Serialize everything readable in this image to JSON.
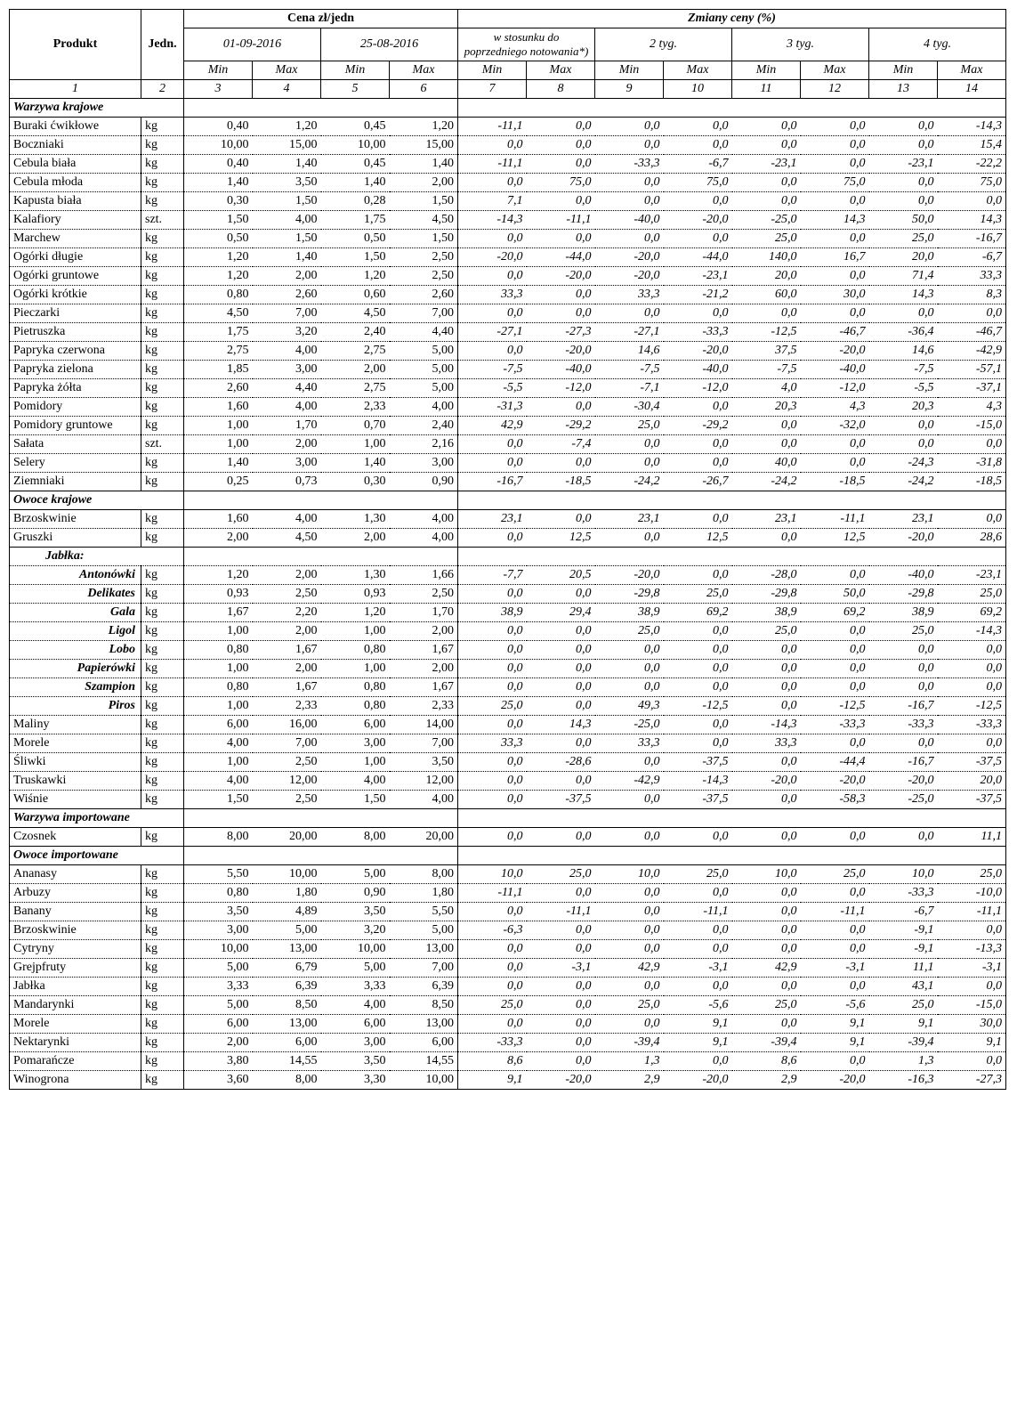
{
  "header": {
    "produkt": "Produkt",
    "jedn": "Jedn.",
    "cena": "Cena zł/jedn",
    "zmiany": "Zmiany ceny (%)",
    "date1": "01-09-2016",
    "date2": "25-08-2016",
    "wstos": "w stosunku do poprzedniego notowania*)",
    "t2": "2 tyg.",
    "t3": "3 tyg.",
    "t4": "4 tyg.",
    "min": "Min",
    "max": "Max",
    "colnums": [
      "1",
      "2",
      "3",
      "4",
      "5",
      "6",
      "7",
      "8",
      "9",
      "10",
      "11",
      "12",
      "13",
      "14"
    ]
  },
  "sections": [
    {
      "title": "Warzywa krajowe",
      "rows": [
        {
          "n": "Buraki ćwikłowe",
          "u": "kg",
          "v": [
            "0,40",
            "1,20",
            "0,45",
            "1,20",
            "-11,1",
            "0,0",
            "0,0",
            "0,0",
            "0,0",
            "0,0",
            "0,0",
            "-14,3"
          ]
        },
        {
          "n": "Boczniaki",
          "u": "kg",
          "v": [
            "10,00",
            "15,00",
            "10,00",
            "15,00",
            "0,0",
            "0,0",
            "0,0",
            "0,0",
            "0,0",
            "0,0",
            "0,0",
            "15,4"
          ]
        },
        {
          "n": "Cebula biała",
          "u": "kg",
          "v": [
            "0,40",
            "1,40",
            "0,45",
            "1,40",
            "-11,1",
            "0,0",
            "-33,3",
            "-6,7",
            "-23,1",
            "0,0",
            "-23,1",
            "-22,2"
          ]
        },
        {
          "n": "Cebula młoda",
          "u": "kg",
          "v": [
            "1,40",
            "3,50",
            "1,40",
            "2,00",
            "0,0",
            "75,0",
            "0,0",
            "75,0",
            "0,0",
            "75,0",
            "0,0",
            "75,0"
          ]
        },
        {
          "n": "Kapusta biała",
          "u": "kg",
          "v": [
            "0,30",
            "1,50",
            "0,28",
            "1,50",
            "7,1",
            "0,0",
            "0,0",
            "0,0",
            "0,0",
            "0,0",
            "0,0",
            "0,0"
          ]
        },
        {
          "n": "Kalafiory",
          "u": "szt.",
          "v": [
            "1,50",
            "4,00",
            "1,75",
            "4,50",
            "-14,3",
            "-11,1",
            "-40,0",
            "-20,0",
            "-25,0",
            "14,3",
            "50,0",
            "14,3"
          ]
        },
        {
          "n": "Marchew",
          "u": "kg",
          "v": [
            "0,50",
            "1,50",
            "0,50",
            "1,50",
            "0,0",
            "0,0",
            "0,0",
            "0,0",
            "25,0",
            "0,0",
            "25,0",
            "-16,7"
          ]
        },
        {
          "n": "Ogórki długie",
          "u": "kg",
          "v": [
            "1,20",
            "1,40",
            "1,50",
            "2,50",
            "-20,0",
            "-44,0",
            "-20,0",
            "-44,0",
            "140,0",
            "16,7",
            "20,0",
            "-6,7"
          ]
        },
        {
          "n": "Ogórki gruntowe",
          "u": "kg",
          "v": [
            "1,20",
            "2,00",
            "1,20",
            "2,50",
            "0,0",
            "-20,0",
            "-20,0",
            "-23,1",
            "20,0",
            "0,0",
            "71,4",
            "33,3"
          ]
        },
        {
          "n": "Ogórki krótkie",
          "u": "kg",
          "v": [
            "0,80",
            "2,60",
            "0,60",
            "2,60",
            "33,3",
            "0,0",
            "33,3",
            "-21,2",
            "60,0",
            "30,0",
            "14,3",
            "8,3"
          ]
        },
        {
          "n": "Pieczarki",
          "u": "kg",
          "v": [
            "4,50",
            "7,00",
            "4,50",
            "7,00",
            "0,0",
            "0,0",
            "0,0",
            "0,0",
            "0,0",
            "0,0",
            "0,0",
            "0,0"
          ]
        },
        {
          "n": "Pietruszka",
          "u": "kg",
          "v": [
            "1,75",
            "3,20",
            "2,40",
            "4,40",
            "-27,1",
            "-27,3",
            "-27,1",
            "-33,3",
            "-12,5",
            "-46,7",
            "-36,4",
            "-46,7"
          ]
        },
        {
          "n": "Papryka czerwona",
          "u": "kg",
          "v": [
            "2,75",
            "4,00",
            "2,75",
            "5,00",
            "0,0",
            "-20,0",
            "14,6",
            "-20,0",
            "37,5",
            "-20,0",
            "14,6",
            "-42,9"
          ]
        },
        {
          "n": "Papryka zielona",
          "u": "kg",
          "v": [
            "1,85",
            "3,00",
            "2,00",
            "5,00",
            "-7,5",
            "-40,0",
            "-7,5",
            "-40,0",
            "-7,5",
            "-40,0",
            "-7,5",
            "-57,1"
          ]
        },
        {
          "n": "Papryka żółta",
          "u": "kg",
          "v": [
            "2,60",
            "4,40",
            "2,75",
            "5,00",
            "-5,5",
            "-12,0",
            "-7,1",
            "-12,0",
            "4,0",
            "-12,0",
            "-5,5",
            "-37,1"
          ]
        },
        {
          "n": "Pomidory",
          "u": "kg",
          "v": [
            "1,60",
            "4,00",
            "2,33",
            "4,00",
            "-31,3",
            "0,0",
            "-30,4",
            "0,0",
            "20,3",
            "4,3",
            "20,3",
            "4,3"
          ]
        },
        {
          "n": "Pomidory gruntowe",
          "u": "kg",
          "v": [
            "1,00",
            "1,70",
            "0,70",
            "2,40",
            "42,9",
            "-29,2",
            "25,0",
            "-29,2",
            "0,0",
            "-32,0",
            "0,0",
            "-15,0"
          ]
        },
        {
          "n": "Sałata",
          "u": "szt.",
          "v": [
            "1,00",
            "2,00",
            "1,00",
            "2,16",
            "0,0",
            "-7,4",
            "0,0",
            "0,0",
            "0,0",
            "0,0",
            "0,0",
            "0,0"
          ]
        },
        {
          "n": "Selery",
          "u": "kg",
          "v": [
            "1,40",
            "3,00",
            "1,40",
            "3,00",
            "0,0",
            "0,0",
            "0,0",
            "0,0",
            "40,0",
            "0,0",
            "-24,3",
            "-31,8"
          ]
        },
        {
          "n": "Ziemniaki",
          "u": "kg",
          "v": [
            "0,25",
            "0,73",
            "0,30",
            "0,90",
            "-16,7",
            "-18,5",
            "-24,2",
            "-26,7",
            "-24,2",
            "-18,5",
            "-24,2",
            "-18,5"
          ]
        }
      ]
    },
    {
      "title": "Owoce krajowe",
      "rows": [
        {
          "n": "Brzoskwinie",
          "u": "kg",
          "v": [
            "1,60",
            "4,00",
            "1,30",
            "4,00",
            "23,1",
            "0,0",
            "23,1",
            "0,0",
            "23,1",
            "-11,1",
            "23,1",
            "0,0"
          ]
        },
        {
          "n": "Gruszki",
          "u": "kg",
          "v": [
            "2,00",
            "4,50",
            "2,00",
            "4,00",
            "0,0",
            "12,5",
            "0,0",
            "12,5",
            "0,0",
            "12,5",
            "-20,0",
            "28,6"
          ]
        },
        {
          "jablka_label": "Jabłka:"
        },
        {
          "n": "Antonówki",
          "apple": true,
          "u": "kg",
          "v": [
            "1,20",
            "2,00",
            "1,30",
            "1,66",
            "-7,7",
            "20,5",
            "-20,0",
            "0,0",
            "-28,0",
            "0,0",
            "-40,0",
            "-23,1"
          ]
        },
        {
          "n": "Delikates",
          "apple": true,
          "u": "kg",
          "v": [
            "0,93",
            "2,50",
            "0,93",
            "2,50",
            "0,0",
            "0,0",
            "-29,8",
            "25,0",
            "-29,8",
            "50,0",
            "-29,8",
            "25,0"
          ]
        },
        {
          "n": "Gala",
          "apple": true,
          "u": "kg",
          "v": [
            "1,67",
            "2,20",
            "1,20",
            "1,70",
            "38,9",
            "29,4",
            "38,9",
            "69,2",
            "38,9",
            "69,2",
            "38,9",
            "69,2"
          ]
        },
        {
          "n": "Ligol",
          "apple": true,
          "u": "kg",
          "v": [
            "1,00",
            "2,00",
            "1,00",
            "2,00",
            "0,0",
            "0,0",
            "25,0",
            "0,0",
            "25,0",
            "0,0",
            "25,0",
            "-14,3"
          ]
        },
        {
          "n": "Lobo",
          "apple": true,
          "u": "kg",
          "v": [
            "0,80",
            "1,67",
            "0,80",
            "1,67",
            "0,0",
            "0,0",
            "0,0",
            "0,0",
            "0,0",
            "0,0",
            "0,0",
            "0,0"
          ]
        },
        {
          "n": "Papierówki",
          "apple": true,
          "u": "kg",
          "v": [
            "1,00",
            "2,00",
            "1,00",
            "2,00",
            "0,0",
            "0,0",
            "0,0",
            "0,0",
            "0,0",
            "0,0",
            "0,0",
            "0,0"
          ]
        },
        {
          "n": "Szampion",
          "apple": true,
          "u": "kg",
          "v": [
            "0,80",
            "1,67",
            "0,80",
            "1,67",
            "0,0",
            "0,0",
            "0,0",
            "0,0",
            "0,0",
            "0,0",
            "0,0",
            "0,0"
          ]
        },
        {
          "n": "Piros",
          "apple": true,
          "u": "kg",
          "v": [
            "1,00",
            "2,33",
            "0,80",
            "2,33",
            "25,0",
            "0,0",
            "49,3",
            "-12,5",
            "0,0",
            "-12,5",
            "-16,7",
            "-12,5"
          ]
        },
        {
          "n": "Maliny",
          "u": "kg",
          "v": [
            "6,00",
            "16,00",
            "6,00",
            "14,00",
            "0,0",
            "14,3",
            "-25,0",
            "0,0",
            "-14,3",
            "-33,3",
            "-33,3",
            "-33,3"
          ]
        },
        {
          "n": "Morele",
          "u": "kg",
          "v": [
            "4,00",
            "7,00",
            "3,00",
            "7,00",
            "33,3",
            "0,0",
            "33,3",
            "0,0",
            "33,3",
            "0,0",
            "0,0",
            "0,0"
          ]
        },
        {
          "n": "Śliwki",
          "u": "kg",
          "v": [
            "1,00",
            "2,50",
            "1,00",
            "3,50",
            "0,0",
            "-28,6",
            "0,0",
            "-37,5",
            "0,0",
            "-44,4",
            "-16,7",
            "-37,5"
          ]
        },
        {
          "n": "Truskawki",
          "u": "kg",
          "v": [
            "4,00",
            "12,00",
            "4,00",
            "12,00",
            "0,0",
            "0,0",
            "-42,9",
            "-14,3",
            "-20,0",
            "-20,0",
            "-20,0",
            "20,0"
          ]
        },
        {
          "n": "Wiśnie",
          "u": "kg",
          "v": [
            "1,50",
            "2,50",
            "1,50",
            "4,00",
            "0,0",
            "-37,5",
            "0,0",
            "-37,5",
            "0,0",
            "-58,3",
            "-25,0",
            "-37,5"
          ]
        }
      ]
    },
    {
      "title": "Warzywa importowane",
      "rows": [
        {
          "n": "Czosnek",
          "u": "kg",
          "v": [
            "8,00",
            "20,00",
            "8,00",
            "20,00",
            "0,0",
            "0,0",
            "0,0",
            "0,0",
            "0,0",
            "0,0",
            "0,0",
            "11,1"
          ]
        }
      ]
    },
    {
      "title": "Owoce importowane",
      "rows": [
        {
          "n": "Ananasy",
          "u": "kg",
          "v": [
            "5,50",
            "10,00",
            "5,00",
            "8,00",
            "10,0",
            "25,0",
            "10,0",
            "25,0",
            "10,0",
            "25,0",
            "10,0",
            "25,0"
          ]
        },
        {
          "n": "Arbuzy",
          "u": "kg",
          "v": [
            "0,80",
            "1,80",
            "0,90",
            "1,80",
            "-11,1",
            "0,0",
            "0,0",
            "0,0",
            "0,0",
            "0,0",
            "-33,3",
            "-10,0"
          ]
        },
        {
          "n": "Banany",
          "u": "kg",
          "v": [
            "3,50",
            "4,89",
            "3,50",
            "5,50",
            "0,0",
            "-11,1",
            "0,0",
            "-11,1",
            "0,0",
            "-11,1",
            "-6,7",
            "-11,1"
          ]
        },
        {
          "n": "Brzoskwinie",
          "u": "kg",
          "v": [
            "3,00",
            "5,00",
            "3,20",
            "5,00",
            "-6,3",
            "0,0",
            "0,0",
            "0,0",
            "0,0",
            "0,0",
            "-9,1",
            "0,0"
          ]
        },
        {
          "n": "Cytryny",
          "u": "kg",
          "v": [
            "10,00",
            "13,00",
            "10,00",
            "13,00",
            "0,0",
            "0,0",
            "0,0",
            "0,0",
            "0,0",
            "0,0",
            "-9,1",
            "-13,3"
          ]
        },
        {
          "n": "Grejpfruty",
          "u": "kg",
          "v": [
            "5,00",
            "6,79",
            "5,00",
            "7,00",
            "0,0",
            "-3,1",
            "42,9",
            "-3,1",
            "42,9",
            "-3,1",
            "11,1",
            "-3,1"
          ]
        },
        {
          "n": "Jabłka",
          "u": "kg",
          "v": [
            "3,33",
            "6,39",
            "3,33",
            "6,39",
            "0,0",
            "0,0",
            "0,0",
            "0,0",
            "0,0",
            "0,0",
            "43,1",
            "0,0"
          ]
        },
        {
          "n": "Mandarynki",
          "u": "kg",
          "v": [
            "5,00",
            "8,50",
            "4,00",
            "8,50",
            "25,0",
            "0,0",
            "25,0",
            "-5,6",
            "25,0",
            "-5,6",
            "25,0",
            "-15,0"
          ]
        },
        {
          "n": "Morele",
          "u": "kg",
          "v": [
            "6,00",
            "13,00",
            "6,00",
            "13,00",
            "0,0",
            "0,0",
            "0,0",
            "9,1",
            "0,0",
            "9,1",
            "9,1",
            "30,0"
          ]
        },
        {
          "n": "Nektarynki",
          "u": "kg",
          "v": [
            "2,00",
            "6,00",
            "3,00",
            "6,00",
            "-33,3",
            "0,0",
            "-39,4",
            "9,1",
            "-39,4",
            "9,1",
            "-39,4",
            "9,1"
          ]
        },
        {
          "n": "Pomarańcze",
          "u": "kg",
          "v": [
            "3,80",
            "14,55",
            "3,50",
            "14,55",
            "8,6",
            "0,0",
            "1,3",
            "0,0",
            "8,6",
            "0,0",
            "1,3",
            "0,0"
          ]
        },
        {
          "n": "Winogrona",
          "u": "kg",
          "v": [
            "3,60",
            "8,00",
            "3,30",
            "10,00",
            "9,1",
            "-20,0",
            "2,9",
            "-20,0",
            "2,9",
            "-20,0",
            "-16,3",
            "-27,3"
          ]
        }
      ]
    }
  ]
}
